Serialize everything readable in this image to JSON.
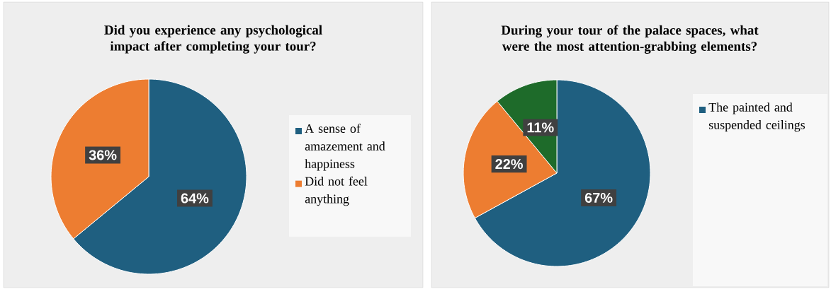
{
  "chart_data": [
    {
      "type": "pie",
      "title": "Did you experience any psychological impact after completing your tour?",
      "categories": [
        "A sense of amazement and happiness",
        "Did not feel anything"
      ],
      "values": [
        64,
        36
      ],
      "colors": [
        "#1f5f80",
        "#ed7d31"
      ],
      "value_labels": [
        "64%",
        "36%"
      ],
      "legend": "right"
    },
    {
      "type": "pie",
      "title": "During your tour of the palace spaces, what were the most attention-grabbing elements?",
      "categories": [
        "The painted and suspended ceilings",
        null,
        null
      ],
      "values": [
        67,
        22,
        11
      ],
      "colors": [
        "#1f5f80",
        "#ed7d31",
        "#1e6b2a"
      ],
      "value_labels": [
        "67%",
        "22%",
        "11%"
      ],
      "legend": "right"
    }
  ]
}
